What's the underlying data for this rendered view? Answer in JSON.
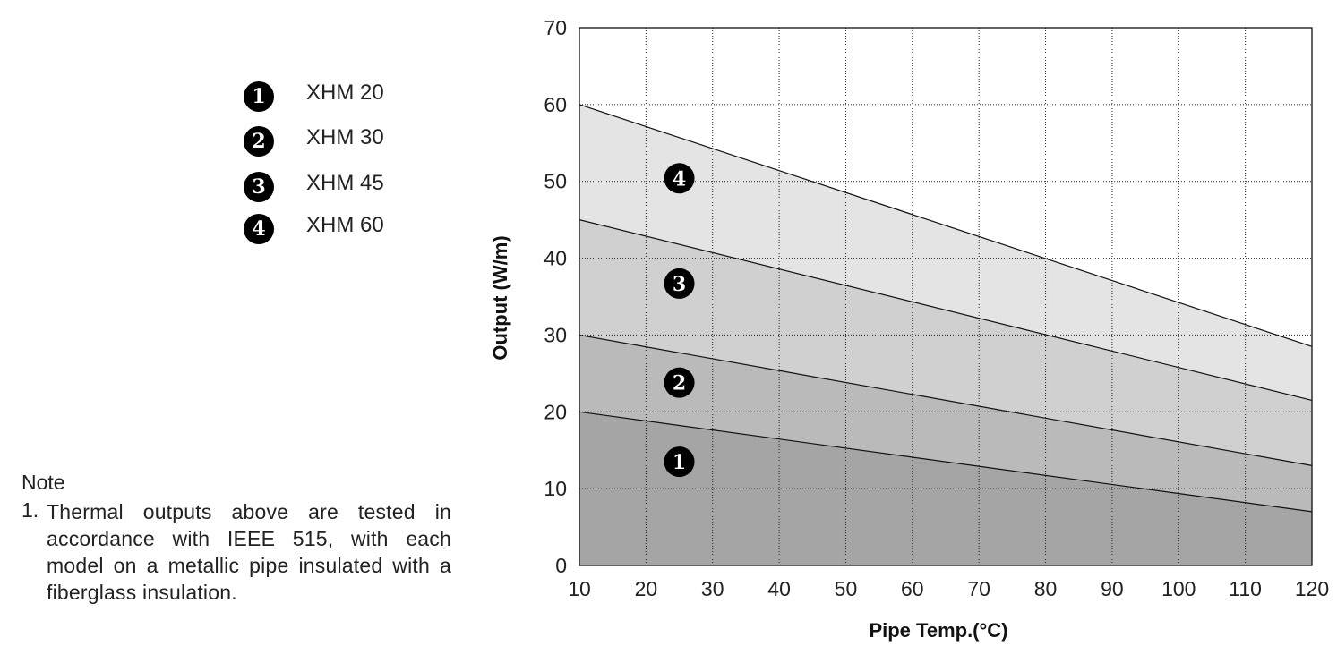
{
  "legend": {
    "items": [
      {
        "marker": "1",
        "label": "XHM 20"
      },
      {
        "marker": "2",
        "label": "XHM 30"
      },
      {
        "marker": "3",
        "label": "XHM 45"
      },
      {
        "marker": "4",
        "label": "XHM 60"
      }
    ]
  },
  "note": {
    "title": "Note",
    "items": [
      {
        "number": "1.",
        "text": "Thermal outputs above are tested in accordance with IEEE 515, with each model on a metallic pipe insulated with a fiberglass insulation."
      }
    ]
  },
  "chart_data": {
    "type": "area",
    "title": "",
    "xlabel": "Pipe Temp.(°C)",
    "ylabel": "Output (W/m)",
    "xlim": [
      10,
      120
    ],
    "ylim": [
      0,
      70
    ],
    "xticks": [
      10,
      20,
      30,
      40,
      50,
      60,
      70,
      80,
      90,
      100,
      110,
      120
    ],
    "yticks": [
      0,
      10,
      20,
      30,
      40,
      50,
      60,
      70
    ],
    "grid": true,
    "series": [
      {
        "name": "XHM 20",
        "marker": "1",
        "x": [
          10,
          120
        ],
        "values": [
          20,
          7
        ],
        "fill": "#a5a5a5",
        "label_at": [
          25,
          13.5
        ]
      },
      {
        "name": "XHM 30",
        "marker": "2",
        "x": [
          10,
          120
        ],
        "values": [
          30,
          13
        ],
        "fill": "#bababa",
        "label_at": [
          25,
          23.8
        ]
      },
      {
        "name": "XHM 45",
        "marker": "3",
        "x": [
          10,
          120
        ],
        "values": [
          45,
          21.5
        ],
        "fill": "#d0d0d0",
        "label_at": [
          25,
          36.7
        ]
      },
      {
        "name": "XHM 60",
        "marker": "4",
        "x": [
          10,
          120
        ],
        "values": [
          60,
          28.5
        ],
        "fill": "#e4e4e4",
        "label_at": [
          25,
          50.4
        ]
      }
    ]
  }
}
